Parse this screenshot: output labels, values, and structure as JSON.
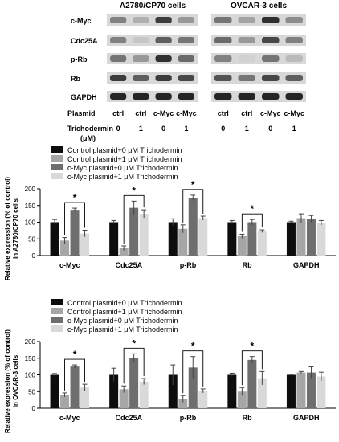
{
  "blot": {
    "groups": [
      "A2780/CP70 cells",
      "OVCAR-3 cells"
    ],
    "proteins": [
      "c-Myc",
      "Cdc25A",
      "p-Rb",
      "Rb",
      "GAPDH"
    ],
    "plasmid_label": "Plasmid",
    "plasmid_values": [
      "ctrl",
      "ctrl",
      "c-Myc",
      "c-Myc",
      "ctrl",
      "ctrl",
      "c-Myc",
      "c-Myc"
    ],
    "treatment_label_line1": "Trichodermin",
    "treatment_label_line2": "(μM)",
    "treatment_values": [
      "0",
      "1",
      "0",
      "1",
      "0",
      "1",
      "0",
      "1"
    ]
  },
  "colors": {
    "s0": "#0d0d0d",
    "s1": "#a6a6a6",
    "s2": "#6e6e6e",
    "s3": "#d9d9d9"
  },
  "chart_data": [
    {
      "type": "bar",
      "ylabel": "Relative expression (% of control) in A2780/CP70 cells",
      "ylim": [
        0,
        200
      ],
      "yticks": [
        "0",
        "50",
        "100",
        "150",
        "200"
      ],
      "categories": [
        "c-Myc",
        "Cdc25A",
        "p-Rb",
        "Rb",
        "GAPDH"
      ],
      "legend_position": "top-left",
      "series": [
        {
          "name": "Control plasmid+0 μM Trichodermin",
          "values": [
            100,
            100,
            100,
            100,
            100
          ],
          "errors": [
            8,
            5,
            10,
            5,
            3
          ]
        },
        {
          "name": "Control plasmid+1 μM Trichodermin",
          "values": [
            45,
            22,
            80,
            58,
            112
          ],
          "errors": [
            9,
            7,
            12,
            6,
            13
          ]
        },
        {
          "name": "c-Myc plasmid+0 μM Trichodermin",
          "values": [
            137,
            143,
            173,
            100,
            110
          ],
          "errors": [
            5,
            20,
            8,
            8,
            10
          ]
        },
        {
          "name": "c-Myc plasmid+1 μM Trichodermin",
          "values": [
            66,
            125,
            112,
            73,
            98
          ],
          "errors": [
            10,
            12,
            6,
            4,
            7
          ]
        }
      ],
      "significance": [
        {
          "category": "c-Myc",
          "from": 1,
          "to": 3,
          "label": "*"
        },
        {
          "category": "Cdc25A",
          "from": 1,
          "to": 3,
          "label": "*"
        },
        {
          "category": "p-Rb",
          "from": 1,
          "to": 3,
          "label": "*"
        },
        {
          "category": "Rb",
          "from": 1,
          "to": 3,
          "label": "*"
        }
      ]
    },
    {
      "type": "bar",
      "ylabel": "Relative expression (% of control) in OVCAR-3 cells",
      "ylim": [
        0,
        200
      ],
      "yticks": [
        "0",
        "50",
        "100",
        "150",
        "200"
      ],
      "categories": [
        "c-Myc",
        "Cdc25A",
        "p-Rb",
        "Rb",
        "GAPDH"
      ],
      "legend_position": "top-left",
      "series": [
        {
          "name": "Control plasmid+0 μM Trichodermin",
          "values": [
            100,
            100,
            100,
            100,
            100
          ],
          "errors": [
            4,
            20,
            30,
            5,
            2
          ]
        },
        {
          "name": "Control plasmid+1 μM Trichodermin",
          "values": [
            40,
            57,
            28,
            50,
            107
          ],
          "errors": [
            6,
            10,
            10,
            12,
            3
          ]
        },
        {
          "name": "c-Myc plasmid+0 μM Trichodermin",
          "values": [
            125,
            150,
            122,
            145,
            107
          ],
          "errors": [
            5,
            13,
            33,
            10,
            17
          ]
        },
        {
          "name": "c-Myc plasmid+1 μM Trichodermin",
          "values": [
            62,
            80,
            52,
            90,
            95
          ],
          "errors": [
            10,
            9,
            6,
            20,
            13
          ]
        }
      ],
      "significance": [
        {
          "category": "c-Myc",
          "from": 1,
          "to": 3,
          "label": "*"
        },
        {
          "category": "Cdc25A",
          "from": 1,
          "to": 3,
          "label": "*"
        },
        {
          "category": "p-Rb",
          "from": 1,
          "to": 3,
          "label": "*"
        },
        {
          "category": "Rb",
          "from": 1,
          "to": 3,
          "label": "*"
        }
      ]
    }
  ]
}
